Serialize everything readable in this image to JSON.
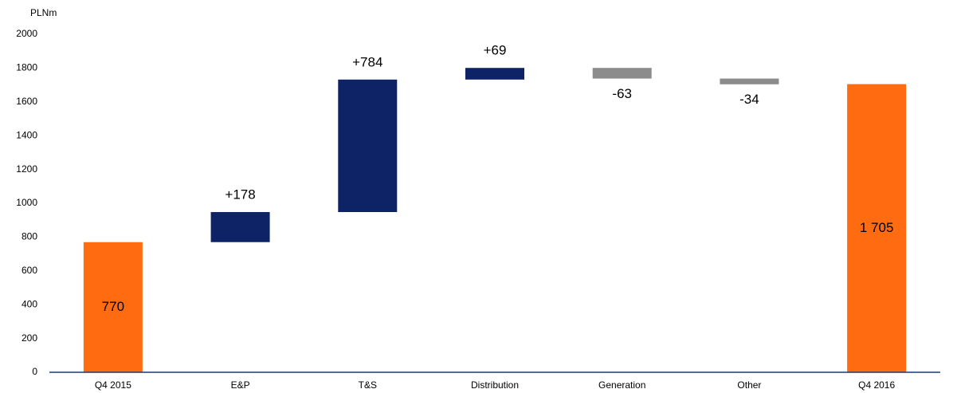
{
  "chart_data": {
    "type": "waterfall",
    "y_label": "PLNm",
    "categories": [
      "Q4 2015",
      "E&P",
      "T&S",
      "Distribution",
      "Generation",
      "Other",
      "Q4 2016"
    ],
    "values": [
      770,
      178,
      784,
      69,
      -63,
      -34,
      1705
    ],
    "value_labels": [
      "770",
      "+178",
      "+784",
      "+69",
      "-63",
      "-34",
      "1 705"
    ],
    "colors": {
      "total": "#ff6b10",
      "increase": "#0e2366",
      "decrease": "#8c8c8c"
    },
    "ylim": [
      0,
      2000
    ],
    "yticks": [
      0,
      200,
      400,
      600,
      800,
      1000,
      1200,
      1400,
      1600,
      1800,
      2000
    ],
    "grid": false
  }
}
